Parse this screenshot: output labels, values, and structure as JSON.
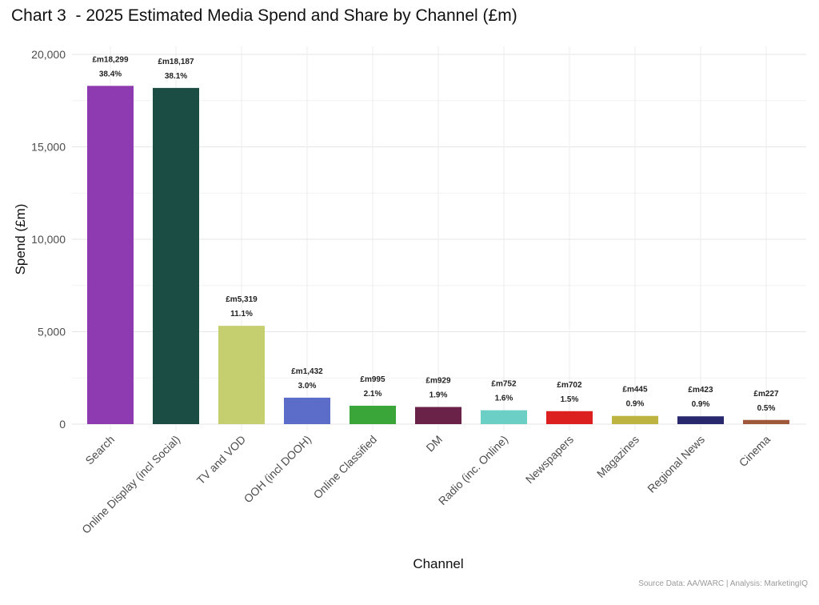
{
  "chart_data": {
    "type": "bar",
    "title": "Chart 3  - 2025 Estimated Media Spend and Share by Channel (£m)",
    "xlabel": "Channel",
    "ylabel": "Spend (£m)",
    "ylim": [
      0,
      20000
    ],
    "yticks": [
      0,
      5000,
      10000,
      15000,
      20000
    ],
    "ytick_labels": [
      "0",
      "5,000",
      "10,000",
      "15,000",
      "20,000"
    ],
    "grid": true,
    "categories": [
      "Search",
      "Online Display (incl Social)",
      "TV and VOD",
      "OOH (incl DOOH)",
      "Online Classified",
      "DM",
      "Radio (inc. Online)",
      "Newspapers",
      "Magazines",
      "Regional News",
      "Cinema"
    ],
    "values": [
      18299,
      18187,
      5319,
      1432,
      995,
      929,
      752,
      702,
      445,
      423,
      227
    ],
    "value_labels": [
      "£m18,299",
      "£m18,187",
      "£m5,319",
      "£m1,432",
      "£m995",
      "£m929",
      "£m752",
      "£m702",
      "£m445",
      "£m423",
      "£m227"
    ],
    "share_labels": [
      "38.4%",
      "38.1%",
      "11.1%",
      "3.0%",
      "2.1%",
      "1.9%",
      "1.6%",
      "1.5%",
      "0.9%",
      "0.9%",
      "0.5%"
    ],
    "colors": [
      "#8e3ab0",
      "#1b4d45",
      "#c6cf6f",
      "#5b6cc9",
      "#3aa63a",
      "#6a2248",
      "#6bcfc6",
      "#dc1f1f",
      "#bdb340",
      "#27286e",
      "#a0583a"
    ],
    "caption": "Source Data: AA/WARC | Analysis: MarketingIQ"
  }
}
